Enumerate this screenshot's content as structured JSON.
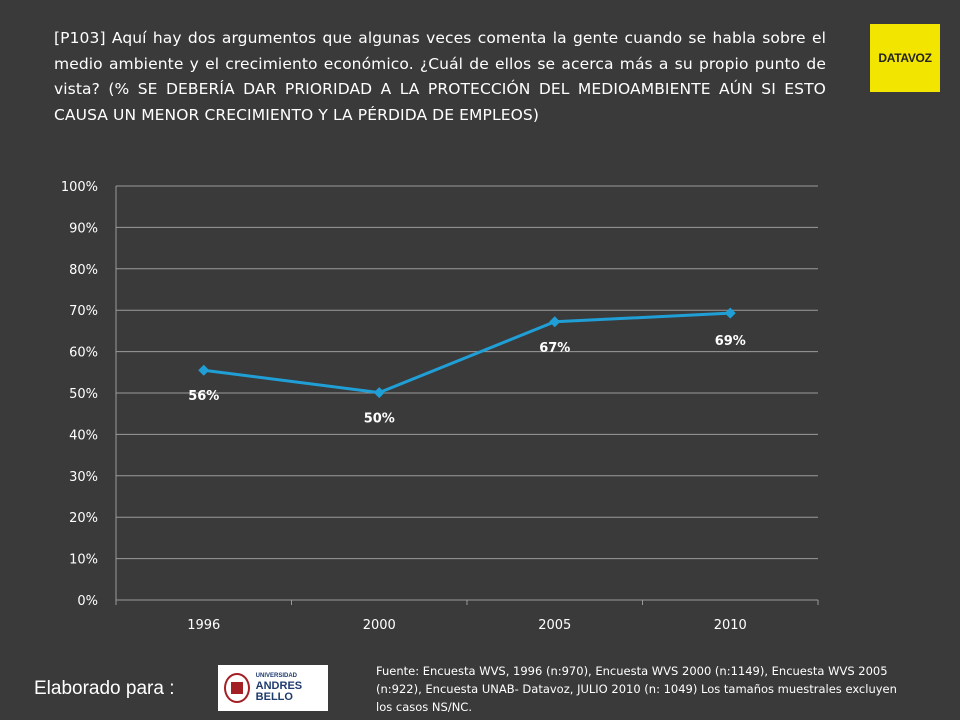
{
  "question": "[P103] Aquí hay dos argumentos que algunas veces comenta la gente cuando se habla sobre el medio ambiente y el crecimiento económico. ¿Cuál de ellos se acerca más a su propio punto de vista? (% SE DEBERÍA DAR PRIORIDAD A LA PROTECCIÓN DEL MEDIOAMBIENTE AÚN SI ESTO CAUSA UN MENOR CRECIMIENTO Y LA PÉRDIDA DE EMPLEOS)",
  "logo_datavoz": "DATAVOZ",
  "elaborado_para": "Elaborado para :",
  "logo_unab": {
    "small": "UNIVERSIDAD",
    "big": "ANDRES BELLO"
  },
  "fuente": "Fuente: Encuesta WVS, 1996 (n:970), Encuesta WVS 2000 (n:1149), Encuesta WVS 2005 (n:922), Encuesta UNAB- Datavoz, JULIO 2010 (n: 1049) Los tamaños muestrales excluyen los casos NS/NC.",
  "colors": {
    "background": "#3a3a3a",
    "line": "#1f9fd6",
    "text": "#ffffff",
    "grid": "#9a9a9a"
  },
  "chart_data": {
    "type": "line",
    "categories": [
      "1996",
      "2000",
      "2005",
      "2010"
    ],
    "series": [
      {
        "values": [
          55.5,
          50.1,
          67.2,
          69.3
        ],
        "labels": [
          "56%",
          "50%",
          "67%",
          "69%"
        ]
      }
    ],
    "ylim": [
      0,
      100
    ],
    "yticks": [
      "0%",
      "10%",
      "20%",
      "30%",
      "40%",
      "50%",
      "60%",
      "70%",
      "80%",
      "90%",
      "100%"
    ],
    "grid": "horizontal",
    "legend": "none",
    "title": "",
    "xlabel": "",
    "ylabel": ""
  }
}
